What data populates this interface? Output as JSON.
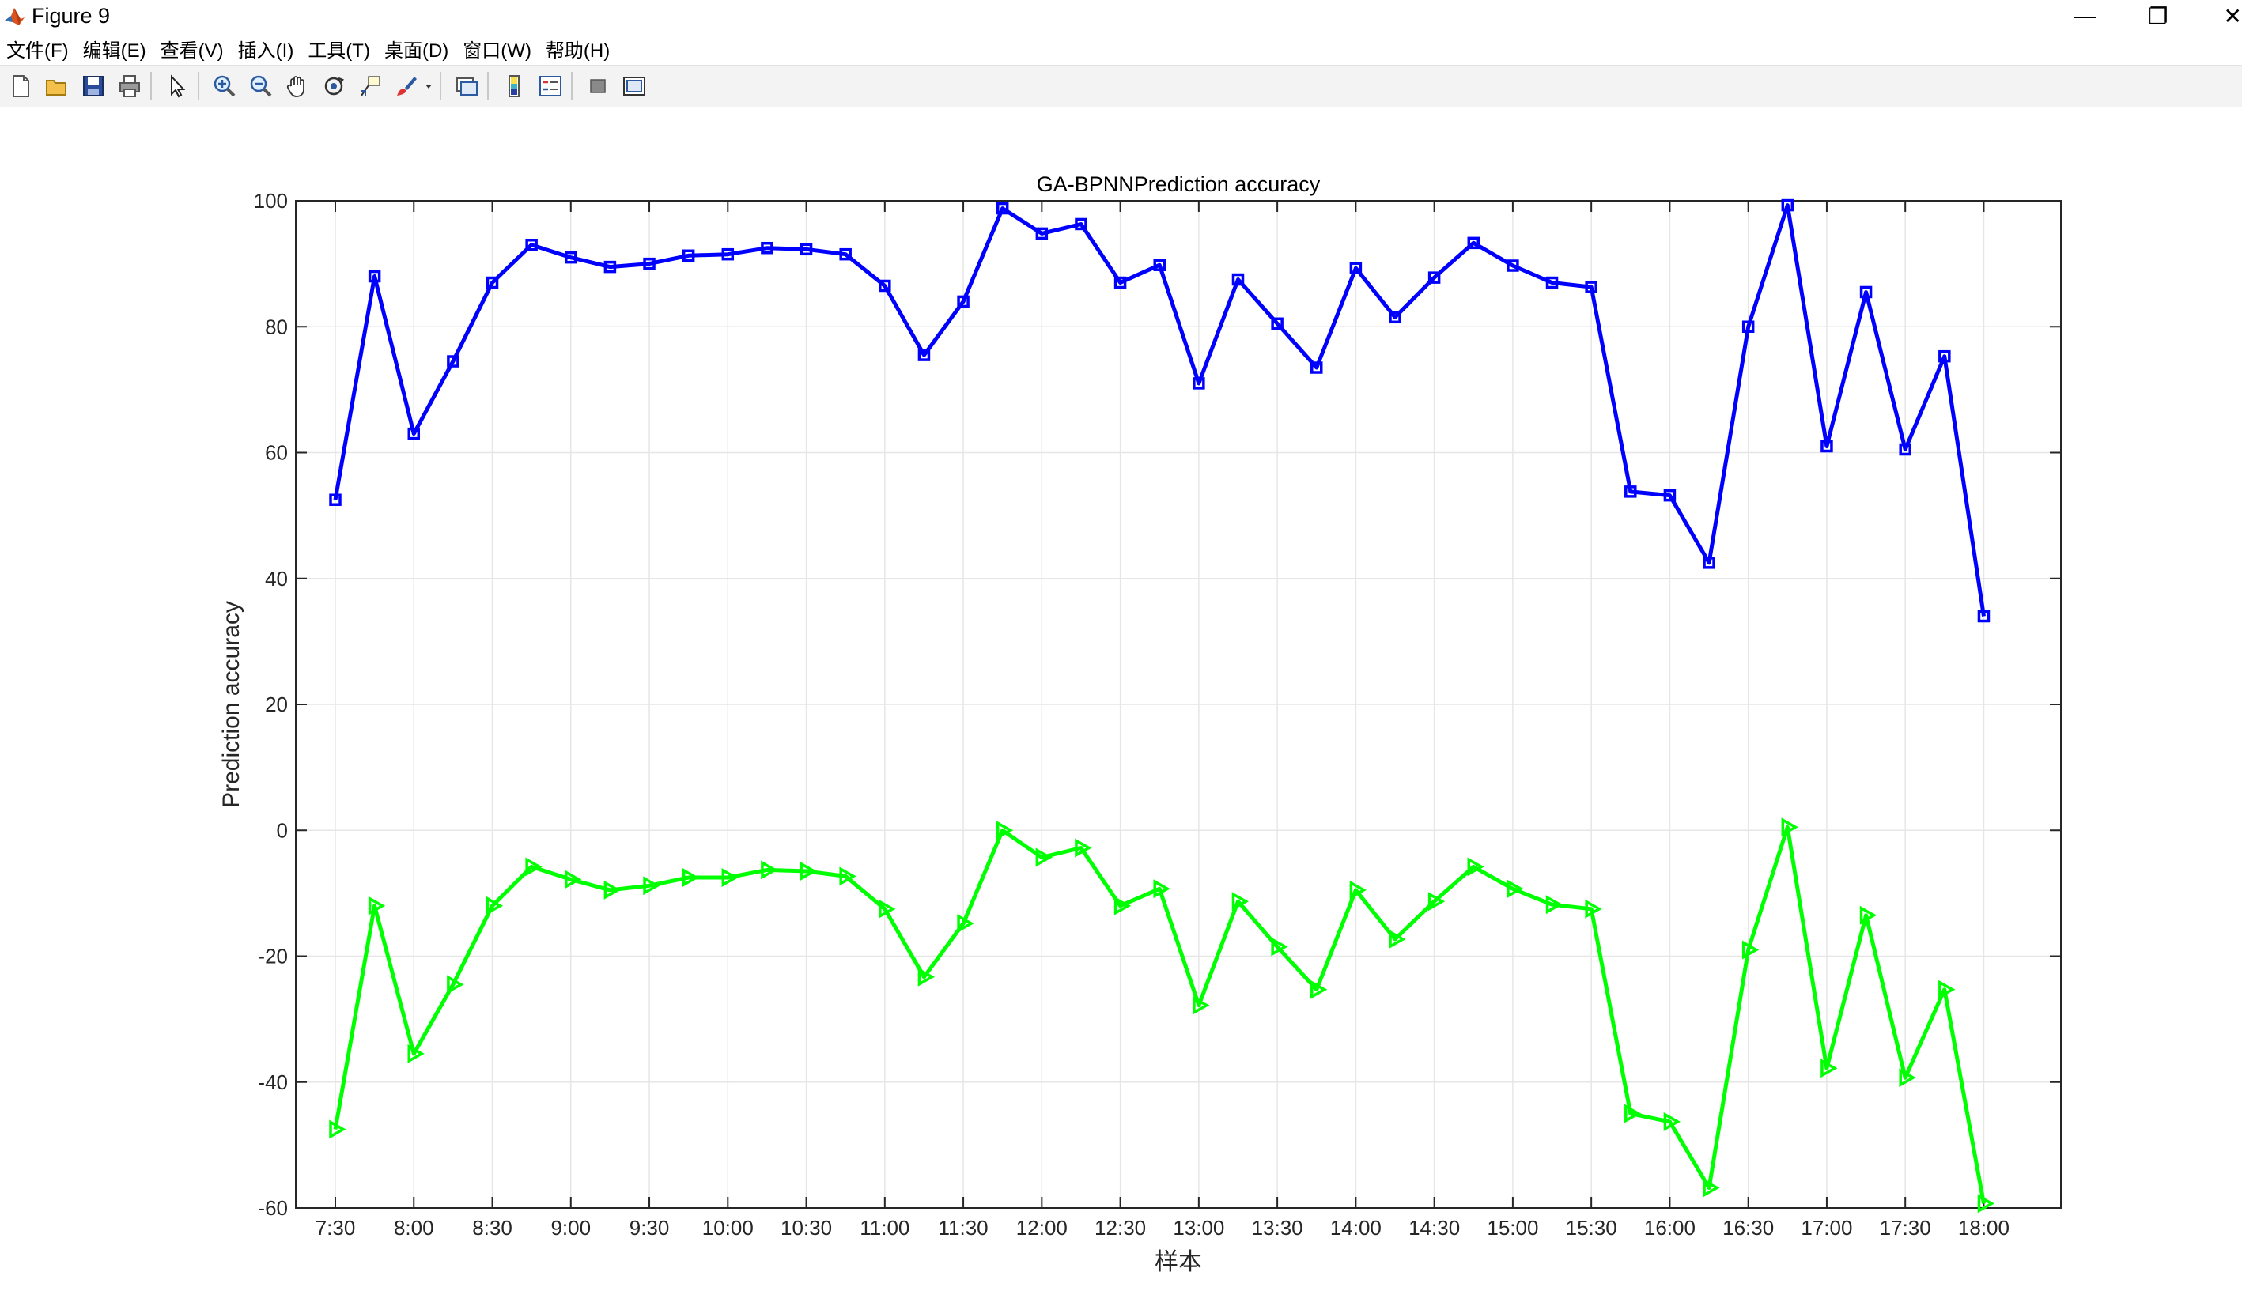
{
  "window": {
    "title": "Figure 9",
    "controls": {
      "minimize": "—",
      "restore": "❐",
      "close": "✕"
    }
  },
  "menu": {
    "items": [
      "文件(F)",
      "编辑(E)",
      "查看(V)",
      "插入(I)",
      "工具(T)",
      "桌面(D)",
      "窗口(W)",
      "帮助(H)"
    ]
  },
  "toolbar": {
    "icons": [
      "new-figure-icon",
      "open-file-icon",
      "save-icon",
      "print-icon",
      "pointer-icon",
      "zoom-in-icon",
      "zoom-out-icon",
      "pan-hand-icon",
      "rotate-3d-icon",
      "data-cursor-icon",
      "brush-icon",
      "brush-dropdown-icon",
      "link-plot-icon",
      "colorbar-icon",
      "legend-icon",
      "hide-plot-tools-icon",
      "show-plot-tools-icon"
    ]
  },
  "colors": {
    "series1": "#0000ff",
    "series2": "#00ff00",
    "grid": "#e6e6e6",
    "axes": "#262626"
  },
  "chart_data": {
    "type": "line",
    "title": "GA-BPNNPrediction accuracy",
    "xlabel": "样本",
    "ylabel": "Prediction accuracy",
    "ylim": [
      -60,
      100
    ],
    "yticks": [
      "100",
      "80",
      "60",
      "40",
      "20",
      "0",
      "-20",
      "-40",
      "-60"
    ],
    "x_tick_labels": [
      "7:30",
      "8:00",
      "8:30",
      "9:00",
      "9:30",
      "10:00",
      "10:30",
      "11:00",
      "11:30",
      "12:00",
      "12:30",
      "13:00",
      "13:30",
      "14:00",
      "14:30",
      "15:00",
      "15:30",
      "16:00",
      "16:30",
      "17:00",
      "17:30",
      "18:00"
    ],
    "grid": true,
    "x": [
      "7:30",
      "7:45",
      "8:00",
      "8:15",
      "8:30",
      "8:45",
      "9:00",
      "9:15",
      "9:30",
      "9:45",
      "10:00",
      "10:15",
      "10:30",
      "10:45",
      "11:00",
      "11:15",
      "11:30",
      "11:45",
      "12:00",
      "12:15",
      "12:30",
      "12:45",
      "13:00",
      "13:15",
      "13:30",
      "13:45",
      "14:00",
      "14:15",
      "14:30",
      "14:45",
      "15:00",
      "15:15",
      "15:30",
      "15:45",
      "16:00",
      "16:15",
      "16:30",
      "16:45",
      "17:00",
      "17:15",
      "17:30",
      "17:45",
      "18:00"
    ],
    "series": [
      {
        "marker": "square",
        "color": "#0000ff",
        "values": [
          52.5,
          88,
          63,
          74.5,
          87,
          93,
          91,
          89.5,
          90,
          91.3,
          91.5,
          92.5,
          92.3,
          91.5,
          86.5,
          75.5,
          84,
          98.8,
          94.8,
          96.3,
          87,
          89.8,
          71,
          87.5,
          80.5,
          73.5,
          89.3,
          81.5,
          87.8,
          93.3,
          89.7,
          87,
          86.3,
          53.8,
          53.2,
          42.5,
          80,
          99.3,
          61,
          85.5,
          60.5,
          75.3,
          34
        ]
      },
      {
        "marker": "triangle-right",
        "color": "#00ff00",
        "values": [
          -47.5,
          -12,
          -35.5,
          -24.5,
          -12,
          -5.8,
          -7.8,
          -9.5,
          -8.8,
          -7.5,
          -7.5,
          -6.3,
          -6.5,
          -7.3,
          -12.5,
          -23.3,
          -14.8,
          0,
          -4.3,
          -2.8,
          -12,
          -9.3,
          -27.8,
          -11.3,
          -18.5,
          -25.3,
          -9.5,
          -17.3,
          -11.3,
          -5.8,
          -9.3,
          -11.8,
          -12.5,
          -45,
          -46.3,
          -56.8,
          -19,
          0.5,
          -37.8,
          -13.5,
          -39.3,
          -25.3,
          -59.3
        ]
      }
    ]
  }
}
